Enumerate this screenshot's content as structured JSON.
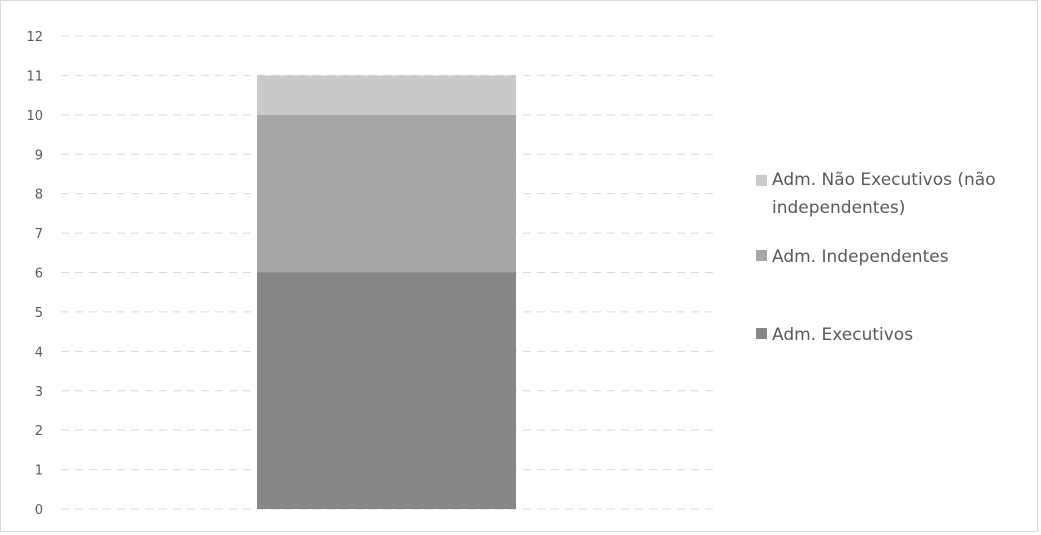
{
  "chart_data": {
    "type": "bar",
    "stacked": true,
    "categories": [
      ""
    ],
    "series": [
      {
        "name": "Adm. Executivos",
        "values": [
          6
        ],
        "color": "#878787"
      },
      {
        "name": "Adm. Independentes",
        "values": [
          4
        ],
        "color": "#a6a6a6"
      },
      {
        "name": "Adm. Não Executivos (não independentes)",
        "values": [
          1
        ],
        "color": "#c9c9c9"
      }
    ],
    "legend_order": [
      2,
      1,
      0
    ],
    "ylim": [
      0,
      12
    ],
    "yticks": [
      "0",
      "1",
      "2",
      "3",
      "4",
      "5",
      "6",
      "7",
      "8",
      "9",
      "10",
      "11",
      "12"
    ],
    "grid": true,
    "grid_style": "dashed",
    "legend_position": "right",
    "title": "",
    "xlabel": "",
    "ylabel": ""
  }
}
